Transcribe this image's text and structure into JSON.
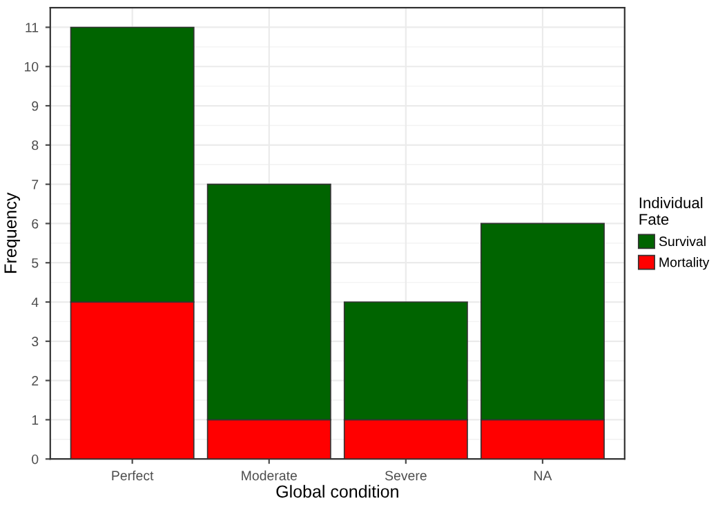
{
  "chart_data": {
    "type": "bar",
    "stacked": true,
    "xlabel": "Global condition",
    "ylabel": "Frequency",
    "legend_title": "Individual\nFate",
    "categories": [
      "Perfect",
      "Moderate",
      "Severe",
      "NA"
    ],
    "series": [
      {
        "name": "Mortality",
        "color": "#ff0000",
        "values": [
          4,
          1,
          1,
          1
        ]
      },
      {
        "name": "Survival",
        "color": "#006400",
        "values": [
          7,
          6,
          3,
          5
        ]
      }
    ],
    "ylim": [
      0,
      11.5
    ],
    "yticks": [
      0,
      1,
      2,
      3,
      4,
      5,
      6,
      7,
      8,
      9,
      10,
      11
    ],
    "grid": true,
    "legend": "right"
  }
}
